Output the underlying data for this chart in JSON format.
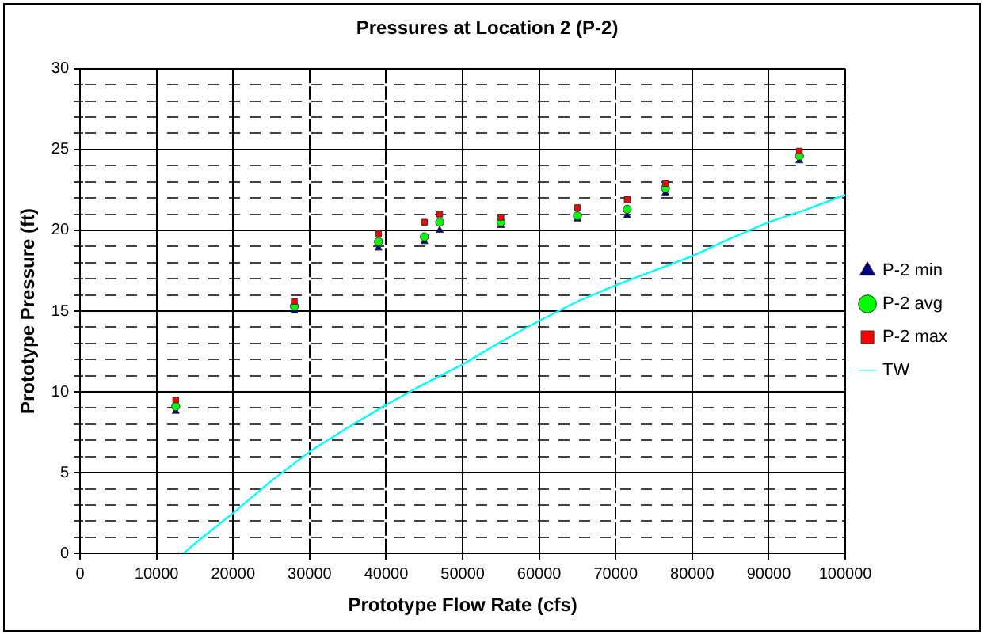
{
  "chart_data": {
    "type": "scatter",
    "title": "Pressures at Location 2 (P-2)",
    "xlabel": "Prototype Flow Rate (cfs)",
    "ylabel": "Prototype Pressure (ft)",
    "x": [
      12500,
      28000,
      39000,
      45000,
      47000,
      55000,
      65000,
      71500,
      76500,
      94000
    ],
    "series": [
      {
        "name": "P-2 min",
        "color": "#000080",
        "marker": "triangle",
        "values": [
          8.8,
          15.0,
          18.9,
          19.3,
          20.0,
          20.3,
          20.7,
          20.9,
          22.3,
          24.3
        ]
      },
      {
        "name": "P-2 avg",
        "color": "#00ff00",
        "marker": "circle",
        "values": [
          9.1,
          15.3,
          19.3,
          19.6,
          20.5,
          20.5,
          20.9,
          21.3,
          22.6,
          24.6
        ]
      },
      {
        "name": "P-2 max",
        "color": "#ff0000",
        "marker": "square",
        "values": [
          9.5,
          15.6,
          19.8,
          20.5,
          21.0,
          20.8,
          21.4,
          21.9,
          22.9,
          24.9
        ]
      },
      {
        "name": "TW",
        "type": "line",
        "color": "#00ffff",
        "marker": "none",
        "x": [
          13500,
          16000,
          20000,
          25000,
          30000,
          35000,
          40000,
          45000,
          50000,
          55000,
          60000,
          65000,
          70000,
          75000,
          80000,
          85000,
          90000,
          95000,
          100000
        ],
        "values": [
          0,
          1.0,
          2.5,
          4.5,
          6.3,
          7.8,
          9.2,
          10.5,
          11.7,
          13.1,
          14.4,
          15.6,
          16.6,
          17.5,
          18.4,
          19.5,
          20.5,
          21.3,
          22.2
        ]
      }
    ],
    "xlim": [
      0,
      100000
    ],
    "xticks": [
      0,
      10000,
      20000,
      30000,
      40000,
      50000,
      60000,
      70000,
      80000,
      90000,
      100000
    ],
    "ylim": [
      0,
      30
    ],
    "yticks": [
      0,
      {
        "value": 1,
        "label": null
      },
      {
        "value": 2,
        "label": null
      },
      {
        "value": 3,
        "label": null
      },
      {
        "value": 4,
        "label": null
      },
      5,
      {
        "value": 6,
        "label": null
      },
      {
        "value": 7,
        "label": null
      },
      {
        "value": 8,
        "label": null
      },
      {
        "value": 9,
        "label": null
      },
      10,
      {
        "value": 11,
        "label": null
      },
      {
        "value": 12,
        "label": null
      },
      {
        "value": 13,
        "label": null
      },
      {
        "value": 14,
        "label": null
      },
      15,
      {
        "value": 16,
        "label": null
      },
      {
        "value": 17,
        "label": null
      },
      {
        "value": 18,
        "label": null
      },
      {
        "value": 19,
        "label": null
      },
      20,
      {
        "value": 21,
        "label": null
      },
      {
        "value": 22,
        "label": null
      },
      {
        "value": 23,
        "label": null
      },
      {
        "value": 24,
        "label": null
      },
      25,
      {
        "value": 26,
        "label": null
      },
      {
        "value": 27,
        "label": null
      },
      {
        "value": 28,
        "label": null
      },
      {
        "value": 29,
        "label": null
      },
      30
    ],
    "grid": true,
    "legend": "right"
  }
}
